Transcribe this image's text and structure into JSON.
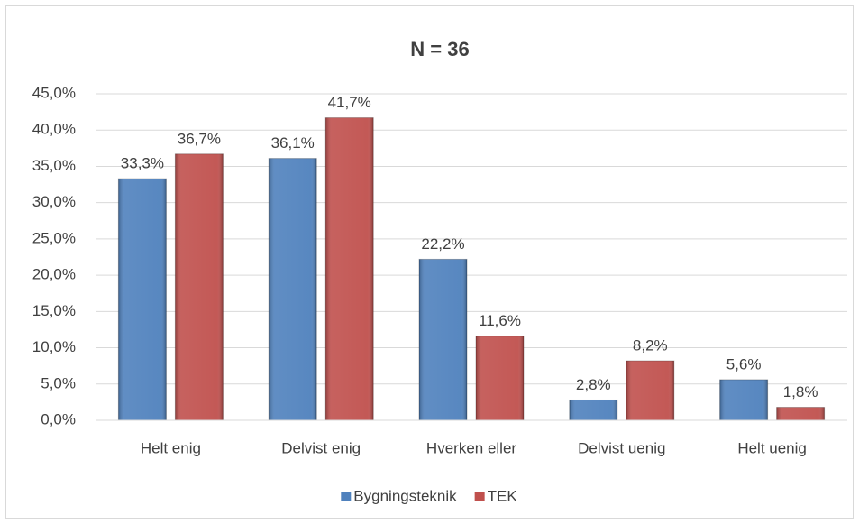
{
  "chart_data": {
    "type": "bar",
    "title": "N = 36",
    "categories": [
      "Helt enig",
      "Delvist enig",
      "Hverken eller",
      "Delvist uenig",
      "Helt uenig"
    ],
    "series": [
      {
        "name": "Bygningsteknik",
        "color": "#4f81bd",
        "values": [
          33.3,
          36.1,
          22.2,
          2.8,
          5.6
        ],
        "value_labels": [
          "33,3%",
          "36,1%",
          "22,2%",
          "2,8%",
          "5,6%"
        ]
      },
      {
        "name": "TEK",
        "color": "#c0504d",
        "values": [
          36.7,
          41.7,
          11.6,
          8.2,
          1.8
        ],
        "value_labels": [
          "36,7%",
          "41,7%",
          "11,6%",
          "8,2%",
          "1,8%"
        ]
      }
    ],
    "ylim": [
      0,
      45
    ],
    "yticks": [
      {
        "value": 0,
        "label": "0,0%"
      },
      {
        "value": 5,
        "label": "5,0%"
      },
      {
        "value": 10,
        "label": "10,0%"
      },
      {
        "value": 15,
        "label": "15,0%"
      },
      {
        "value": 20,
        "label": "20,0%"
      },
      {
        "value": 25,
        "label": "25,0%"
      },
      {
        "value": 30,
        "label": "30,0%"
      },
      {
        "value": 35,
        "label": "35,0%"
      },
      {
        "value": 40,
        "label": "40,0%"
      },
      {
        "value": 45,
        "label": "45,0%"
      }
    ],
    "grid": true,
    "legend": "bottom"
  }
}
